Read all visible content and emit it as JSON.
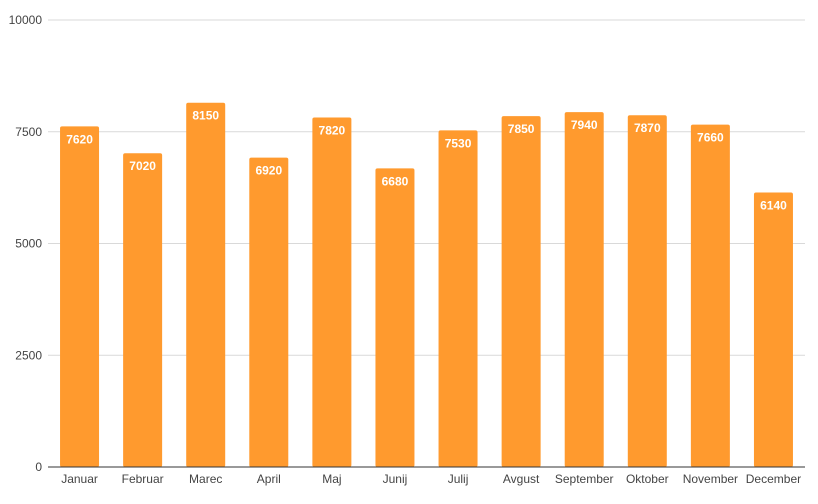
{
  "chart_data": {
    "type": "bar",
    "categories": [
      "Januar",
      "Februar",
      "Marec",
      "April",
      "Maj",
      "Junij",
      "Julij",
      "Avgust",
      "September",
      "Oktober",
      "November",
      "December"
    ],
    "values": [
      7620,
      7020,
      8150,
      6920,
      7820,
      6680,
      7530,
      7850,
      7940,
      7870,
      7660,
      6140
    ],
    "ylim": [
      0,
      10000
    ],
    "yticks": [
      "0",
      "2500",
      "5000",
      "7500",
      "10000"
    ],
    "grid": true,
    "legend": "none",
    "bar_color": "#ff9a2e",
    "data_labels": [
      "7620",
      "7020",
      "8150",
      "6920",
      "7820",
      "6680",
      "7530",
      "7850",
      "7940",
      "7870",
      "7660",
      "6140"
    ]
  }
}
